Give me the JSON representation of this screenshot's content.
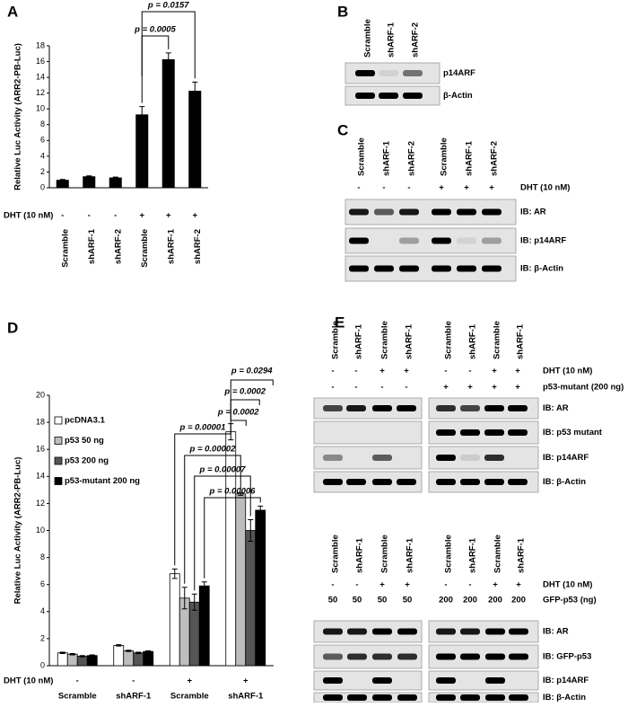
{
  "panel_labels": [
    "A",
    "B",
    "C",
    "D",
    "E"
  ],
  "chart_data": [
    {
      "type": "bar",
      "ylabel": "Relative Luc Activity (ARR2-PB-Luc)",
      "categories": [
        "Scramble",
        "shARF-1",
        "shARF-2",
        "Scramble",
        "shARF-1",
        "shARF-2"
      ],
      "values": [
        1.0,
        1.45,
        1.3,
        9.3,
        16.3,
        12.3
      ],
      "errors": [
        0.05,
        0.06,
        0.05,
        1.0,
        0.8,
        1.1
      ],
      "color": "#000000",
      "ylim": [
        0,
        18
      ],
      "yticks": [
        0,
        2,
        4,
        6,
        8,
        10,
        12,
        14,
        16,
        18
      ],
      "treatment_rows": [
        {
          "label": "DHT (10 nM)",
          "marks": [
            "-",
            "-",
            "-",
            "+",
            "+",
            "+"
          ]
        }
      ],
      "annotations": [
        "p = 0.0005",
        "p = 0.0157"
      ]
    },
    {
      "type": "grouped_bar",
      "ylabel": "Relative Luc Activity (ARR2-PB-Luc)",
      "categories": [
        "Scramble",
        "shARF-1",
        "Scramble",
        "shARF-1"
      ],
      "series": [
        {
          "name": "pcDNA3.1",
          "color": "#ffffff",
          "values": [
            0.95,
            1.5,
            6.8,
            17.3
          ],
          "errors": [
            0.05,
            0.05,
            0.35,
            0.6
          ]
        },
        {
          "name": "p53 50 ng",
          "color": "#bdbdbd",
          "values": [
            0.85,
            1.1,
            5.0,
            12.7
          ],
          "errors": [
            0.05,
            0.05,
            0.8,
            0.1
          ]
        },
        {
          "name": "p53 200 ng",
          "color": "#555555",
          "values": [
            0.7,
            0.95,
            4.7,
            10.0
          ],
          "errors": [
            0.05,
            0.05,
            0.6,
            0.8
          ]
        },
        {
          "name": "p53-mutant 200 ng",
          "color": "#000000",
          "values": [
            0.75,
            1.05,
            5.9,
            11.5
          ],
          "errors": [
            0.05,
            0.05,
            0.3,
            0.3
          ]
        }
      ],
      "ylim": [
        0,
        20
      ],
      "yticks": [
        0,
        2,
        4,
        6,
        8,
        10,
        12,
        14,
        16,
        18,
        20
      ],
      "legend": "upper left",
      "treatment_rows": [
        {
          "label": "DHT (10 nM)",
          "marks": [
            "-",
            "-",
            "+",
            "+"
          ]
        }
      ],
      "annotations": [
        "p = 0.0294",
        "p = 0.0002",
        "p = 0.0002",
        "p = 0.00001",
        "p = 0.00002",
        "p = 0.00007",
        "p = 0.00006"
      ]
    }
  ],
  "blot_b": {
    "lanes": [
      "Scramble",
      "shARF-1",
      "shARF-2"
    ],
    "treatment_rows": [],
    "rows": [
      "p14ARF",
      "β-Actin"
    ]
  },
  "blot_c": {
    "lanes": [
      "Scramble",
      "shARF-1",
      "shARF-2",
      "Scramble",
      "shARF-1",
      "shARF-2"
    ],
    "treatment_rows": [
      {
        "label": "DHT (10 nM)",
        "marks": [
          "-",
          "-",
          "-",
          "+",
          "+",
          "+"
        ]
      }
    ],
    "rows": [
      "IB: AR",
      "IB: p14ARF",
      "IB: β-Actin"
    ]
  },
  "blot_e_top": {
    "lanes": [
      "Scramble",
      "shARF-1",
      "Scramble",
      "shARF-1",
      "Scramble",
      "shARF-1",
      "Scramble",
      "shARF-1"
    ],
    "treatment_rows": [
      {
        "label": "DHT (10 nM)",
        "marks": [
          "-",
          "-",
          "+",
          "+",
          "-",
          "-",
          "+",
          "+"
        ]
      },
      {
        "label": "p53-mutant (200 ng)",
        "marks": [
          "-",
          "-",
          "-",
          "-",
          "+",
          "+",
          "+",
          "+"
        ]
      }
    ],
    "rows": [
      "IB: AR",
      "IB: p53 mutant",
      "IB: p14ARF",
      "IB: β-Actin"
    ]
  },
  "blot_e_bottom": {
    "lanes": [
      "Scramble",
      "shARF-1",
      "Scramble",
      "shARF-1",
      "Scramble",
      "shARF-1",
      "Scramble",
      "shARF-1"
    ],
    "treatment_rows": [
      {
        "label": "DHT (10 nM)",
        "marks": [
          "-",
          "-",
          "+",
          "+",
          "-",
          "-",
          "+",
          "+"
        ]
      },
      {
        "label": "GFP-p53 (ng)",
        "marks": [
          "50",
          "50",
          "50",
          "50",
          "200",
          "200",
          "200",
          "200"
        ]
      }
    ],
    "rows": [
      "IB: AR",
      "IB: GFP-p53",
      "IB: p14ARF",
      "IB: β-Actin"
    ]
  }
}
